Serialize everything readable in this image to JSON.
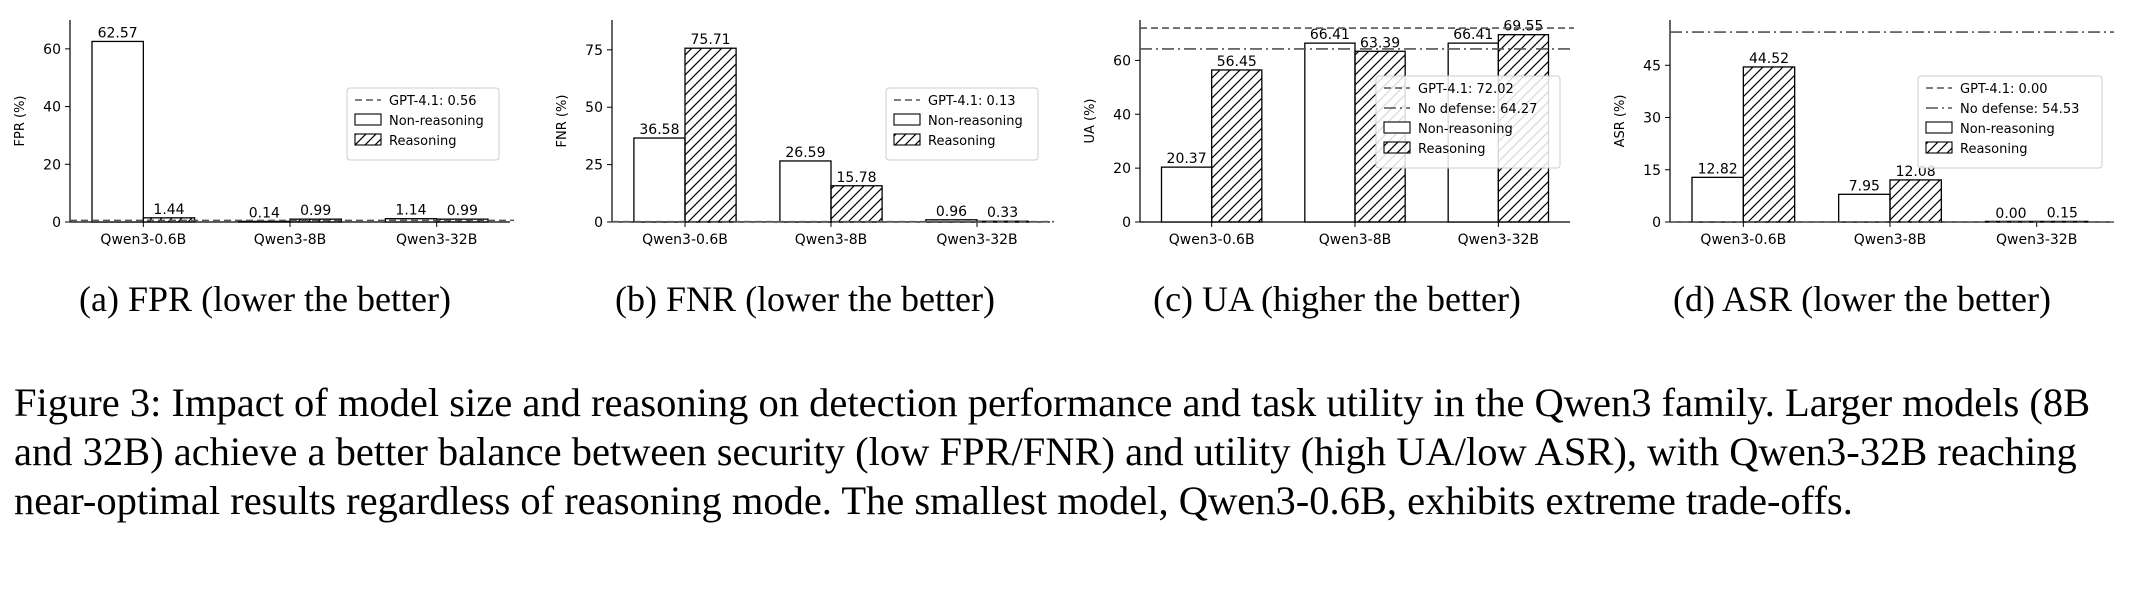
{
  "chart_data": [
    {
      "type": "bar",
      "categories": [
        "Qwen3-0.6B",
        "Qwen3-8B",
        "Qwen3-32B"
      ],
      "ylabel": "FPR (%)",
      "ylim": [
        0,
        70
      ],
      "yticks": [
        0,
        20,
        40,
        60
      ],
      "series": [
        {
          "name": "Non-reasoning",
          "values": [
            62.57,
            0.14,
            1.14
          ],
          "hatch": false
        },
        {
          "name": "Reasoning",
          "values": [
            1.44,
            0.99,
            0.99
          ],
          "hatch": true
        }
      ],
      "baselines": [
        {
          "label": "GPT-4.1: 0.56",
          "value": 0.56,
          "style": "dashed"
        }
      ],
      "legend_position": "center-right",
      "subcaption": "(a) FPR (lower the better)"
    },
    {
      "type": "bar",
      "categories": [
        "Qwen3-0.6B",
        "Qwen3-8B",
        "Qwen3-32B"
      ],
      "ylabel": "FNR (%)",
      "ylim": [
        0,
        88
      ],
      "yticks": [
        0,
        25,
        50,
        75
      ],
      "series": [
        {
          "name": "Non-reasoning",
          "values": [
            36.58,
            26.59,
            0.96
          ],
          "hatch": false
        },
        {
          "name": "Reasoning",
          "values": [
            75.71,
            15.78,
            0.33
          ],
          "hatch": true
        }
      ],
      "baselines": [
        {
          "label": "GPT-4.1: 0.13",
          "value": 0.13,
          "style": "dashed"
        }
      ],
      "legend_position": "center-right",
      "subcaption": "(b) FNR (lower the better)"
    },
    {
      "type": "bar",
      "categories": [
        "Qwen3-0.6B",
        "Qwen3-8B",
        "Qwen3-32B"
      ],
      "ylabel": "UA (%)",
      "ylim": [
        0,
        75
      ],
      "yticks": [
        0,
        20,
        40,
        60
      ],
      "series": [
        {
          "name": "Non-reasoning",
          "values": [
            20.37,
            66.41,
            66.41
          ],
          "hatch": false
        },
        {
          "name": "Reasoning",
          "values": [
            56.45,
            63.39,
            69.55
          ],
          "hatch": true
        }
      ],
      "baselines": [
        {
          "label": "GPT-4.1: 72.02",
          "value": 72.02,
          "style": "dashed"
        },
        {
          "label": "No defense: 64.27",
          "value": 64.27,
          "style": "dashdot"
        }
      ],
      "legend_position": "right",
      "subcaption": "(c) UA (higher the better)"
    },
    {
      "type": "bar",
      "categories": [
        "Qwen3-0.6B",
        "Qwen3-8B",
        "Qwen3-32B"
      ],
      "ylabel": "ASR (%)",
      "ylim": [
        0,
        58
      ],
      "yticks": [
        0,
        15,
        30,
        45
      ],
      "series": [
        {
          "name": "Non-reasoning",
          "values": [
            12.82,
            7.95,
            0.0
          ],
          "hatch": false
        },
        {
          "name": "Reasoning",
          "values": [
            44.52,
            12.08,
            0.15
          ],
          "hatch": true
        }
      ],
      "baselines": [
        {
          "label": "GPT-4.1: 0.00",
          "value": 0.0,
          "style": "dashed"
        },
        {
          "label": "No defense: 54.53",
          "value": 54.53,
          "style": "dashdot"
        }
      ],
      "legend_position": "upper-right",
      "subcaption": "(d) ASR (lower the better)"
    }
  ],
  "caption": "Figure 3: Impact of model size and reasoning on detection performance and task utility in the Qwen3 family. Larger models (8B and 32B) achieve a better balance between security (low FPR/FNR) and utility (high UA/low ASR), with Qwen3-32B reaching near-optimal results regardless of reasoning mode. The smallest model, Qwen3-0.6B, exhibits extreme trade-offs."
}
